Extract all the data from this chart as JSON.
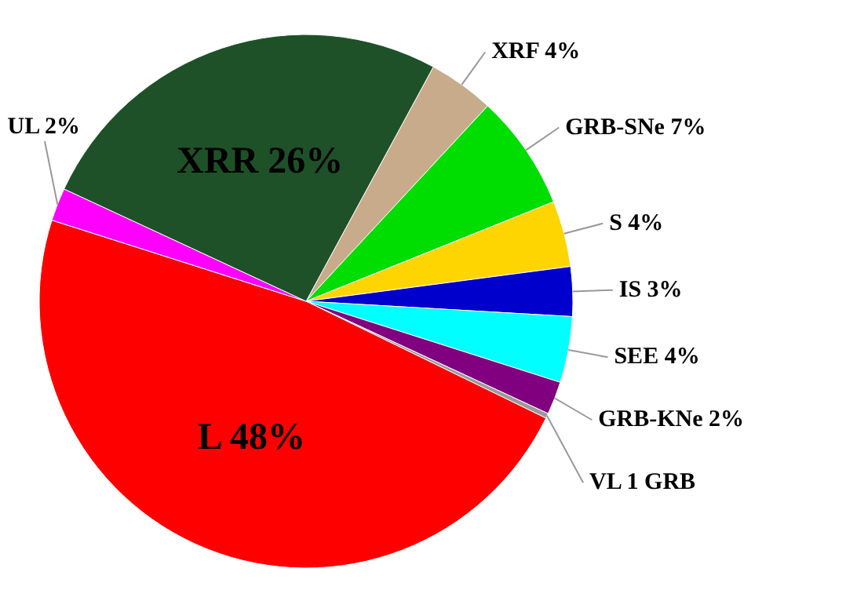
{
  "chart_data": {
    "type": "pie",
    "categories": [
      "XRF",
      "GRB-SNe",
      "S",
      "IS",
      "SEE",
      "GRB-KNe",
      "VL 1 GRB",
      "L",
      "UL",
      "XRR"
    ],
    "values": [
      4,
      7,
      4,
      3,
      4,
      2,
      0.3,
      47.7,
      2,
      26
    ],
    "value_labels": [
      "4%",
      "7%",
      "4%",
      "3%",
      "4%",
      "2%",
      null,
      "48%",
      "2%",
      "26%"
    ],
    "colors": [
      "#c8ab8b",
      "#00dd00",
      "#ffd500",
      "#0000cc",
      "#00ffff",
      "#800080",
      "#9a9a9a",
      "#ff0000",
      "#ff00ff",
      "#1e5128"
    ]
  }
}
